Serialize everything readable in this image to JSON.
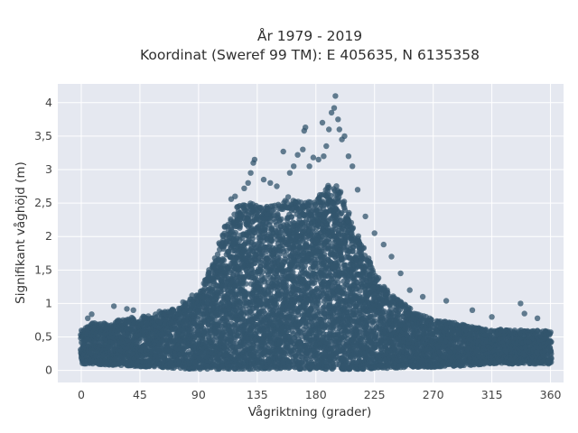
{
  "chart_data": {
    "type": "scatter",
    "title_line1": "År 1979 - 2019",
    "title_line2": "Koordinat (Sweref 99 TM): E 405635, N 6135358",
    "xlabel": "Vågriktning (grader)",
    "ylabel": "Signifikant våghöjd (m)",
    "xlim": [
      -18,
      370
    ],
    "ylim": [
      -0.18,
      4.28
    ],
    "xticks": [
      0,
      45,
      90,
      135,
      180,
      225,
      270,
      315,
      360
    ],
    "xtick_labels": [
      "0",
      "45",
      "90",
      "135",
      "180",
      "225",
      "270",
      "315",
      "360"
    ],
    "yticks": [
      0,
      0.5,
      1,
      1.5,
      2,
      2.5,
      3,
      3.5,
      4
    ],
    "ytick_labels": [
      "0",
      "0,5",
      "1",
      "1,5",
      "2",
      "2,5",
      "3",
      "3,5",
      "4"
    ],
    "grid": true,
    "marker_color": "#33566e",
    "background_color": "#e5e8f0",
    "envelope": {
      "x": [
        0,
        10,
        20,
        30,
        45,
        60,
        75,
        90,
        100,
        110,
        120,
        130,
        140,
        150,
        160,
        170,
        180,
        190,
        195,
        200,
        210,
        220,
        230,
        240,
        255,
        270,
        285,
        300,
        315,
        330,
        345,
        360
      ],
      "upper": [
        0.6,
        0.72,
        0.7,
        0.78,
        0.8,
        0.85,
        0.95,
        1.15,
        1.55,
        2.15,
        2.45,
        2.5,
        2.45,
        2.5,
        2.6,
        2.5,
        2.55,
        2.8,
        2.85,
        2.65,
        2.1,
        1.75,
        1.3,
        1.1,
        0.9,
        0.75,
        0.72,
        0.65,
        0.62,
        0.6,
        0.6,
        0.6
      ],
      "lower": [
        0.1,
        0.1,
        0.08,
        0.08,
        0.06,
        0.05,
        0.03,
        0.02,
        0.02,
        0.02,
        0.02,
        0.02,
        0.02,
        0.02,
        0.02,
        0.02,
        0.02,
        0.02,
        0.02,
        0.02,
        0.02,
        0.02,
        0.03,
        0.04,
        0.05,
        0.05,
        0.06,
        0.08,
        0.1,
        0.1,
        0.1,
        0.1
      ]
    },
    "outliers": [
      [
        5,
        0.78
      ],
      [
        8,
        0.84
      ],
      [
        25,
        0.96
      ],
      [
        35,
        0.92
      ],
      [
        40,
        0.9
      ],
      [
        60,
        0.88
      ],
      [
        78,
        1.02
      ],
      [
        85,
        1.12
      ],
      [
        95,
        1.35
      ],
      [
        98,
        1.5
      ],
      [
        103,
        1.62
      ],
      [
        115,
        2.56
      ],
      [
        118,
        2.6
      ],
      [
        125,
        2.72
      ],
      [
        128,
        2.8
      ],
      [
        130,
        2.95
      ],
      [
        132,
        3.1
      ],
      [
        133,
        3.15
      ],
      [
        140,
        2.85
      ],
      [
        145,
        2.8
      ],
      [
        150,
        2.75
      ],
      [
        155,
        3.27
      ],
      [
        160,
        2.95
      ],
      [
        163,
        3.05
      ],
      [
        166,
        3.22
      ],
      [
        170,
        3.3
      ],
      [
        171,
        3.58
      ],
      [
        172,
        3.63
      ],
      [
        175,
        3.05
      ],
      [
        178,
        3.18
      ],
      [
        182,
        3.15
      ],
      [
        185,
        3.7
      ],
      [
        186,
        3.2
      ],
      [
        188,
        3.35
      ],
      [
        190,
        3.6
      ],
      [
        192,
        3.85
      ],
      [
        194,
        3.92
      ],
      [
        195,
        4.1
      ],
      [
        197,
        3.75
      ],
      [
        198,
        3.6
      ],
      [
        200,
        3.45
      ],
      [
        202,
        3.5
      ],
      [
        205,
        3.2
      ],
      [
        208,
        3.05
      ],
      [
        212,
        2.7
      ],
      [
        218,
        2.3
      ],
      [
        225,
        2.05
      ],
      [
        232,
        1.88
      ],
      [
        238,
        1.7
      ],
      [
        245,
        1.45
      ],
      [
        252,
        1.2
      ],
      [
        262,
        1.1
      ],
      [
        280,
        1.04
      ],
      [
        300,
        0.9
      ],
      [
        315,
        0.8
      ],
      [
        337,
        1.0
      ],
      [
        340,
        0.85
      ],
      [
        350,
        0.78
      ]
    ]
  }
}
